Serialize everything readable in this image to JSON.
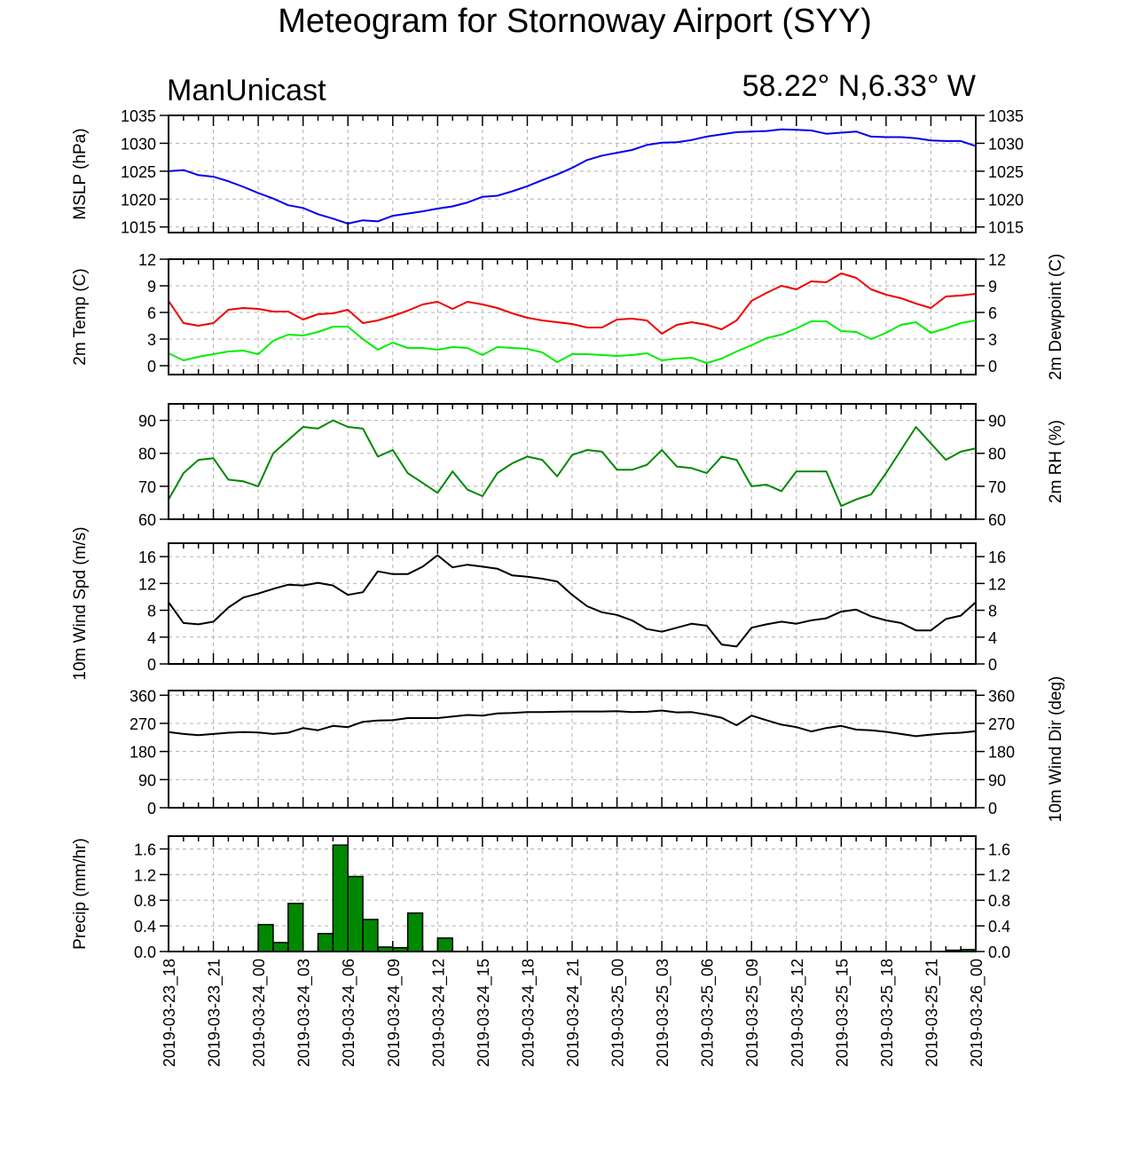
{
  "title": "Meteogram for Stornoway Airport (SYY)",
  "model": "ManUnicast",
  "location": "58.22° N,6.33° W",
  "x_tick_labels": [
    "2019-03-23_18",
    "2019-03-23_21",
    "2019-03-24_00",
    "2019-03-24_03",
    "2019-03-24_06",
    "2019-03-24_09",
    "2019-03-24_12",
    "2019-03-24_15",
    "2019-03-24_18",
    "2019-03-24_21",
    "2019-03-25_00",
    "2019-03-25_03",
    "2019-03-25_06",
    "2019-03-25_09",
    "2019-03-25_12",
    "2019-03-25_15",
    "2019-03-25_18",
    "2019-03-25_21",
    "2019-03-26_00"
  ],
  "chart_data": [
    {
      "type": "line",
      "ylabel_left": "MSLP (hPa)",
      "ylabel_right": "",
      "ylim": [
        1014,
        1035
      ],
      "yticks": [
        1015,
        1020,
        1025,
        1030,
        1035
      ],
      "grid": true,
      "x_unit": "hours from 2019-03-23_18",
      "series": [
        {
          "color": "#0000ee",
          "x": [
            0,
            1,
            2,
            3,
            4,
            5,
            6,
            7,
            8,
            9,
            10,
            11,
            12,
            13,
            14,
            15,
            16,
            17,
            18,
            19,
            20,
            21,
            22,
            23,
            24,
            25,
            26,
            27,
            28,
            29,
            30,
            31,
            32,
            33,
            34,
            35,
            36,
            37,
            38,
            39,
            40,
            41,
            42,
            43,
            44,
            45,
            46,
            47,
            48,
            49,
            50,
            51,
            52,
            53,
            54
          ],
          "y": [
            1025.0,
            1025.2,
            1024.3,
            1024.0,
            1023.2,
            1022.2,
            1021.1,
            1020.1,
            1018.9,
            1018.4,
            1017.3,
            1016.5,
            1015.6,
            1016.2,
            1016.0,
            1017.0,
            1017.4,
            1017.8,
            1018.3,
            1018.7,
            1019.4,
            1020.4,
            1020.6,
            1021.4,
            1022.3,
            1023.4,
            1024.4,
            1025.6,
            1027.0,
            1027.8,
            1028.3,
            1028.8,
            1029.7,
            1030.1,
            1030.2,
            1030.6,
            1031.2,
            1031.6,
            1032.0,
            1032.1,
            1032.2,
            1032.5,
            1032.4,
            1032.3,
            1031.7,
            1031.9,
            1032.1,
            1031.2,
            1031.1,
            1031.1,
            1030.9,
            1030.5,
            1030.4,
            1030.4,
            1029.5
          ]
        }
      ]
    },
    {
      "type": "line",
      "ylabel_left": "2m Temp (C)",
      "ylabel_right": "2m Dewpoint (C)",
      "ylim": [
        -1,
        12
      ],
      "yticks": [
        0,
        3,
        6,
        9,
        12
      ],
      "grid": true,
      "x_unit": "hours from 2019-03-23_18",
      "series": [
        {
          "color": "#ee0000",
          "x": [
            0,
            1,
            2,
            3,
            4,
            5,
            6,
            7,
            8,
            9,
            10,
            11,
            12,
            13,
            14,
            15,
            16,
            17,
            18,
            19,
            20,
            21,
            22,
            23,
            24,
            25,
            26,
            27,
            28,
            29,
            30,
            31,
            32,
            33,
            34,
            35,
            36,
            37,
            38,
            39,
            40,
            41,
            42,
            43,
            44,
            45,
            46,
            47,
            48,
            49,
            50,
            51,
            52,
            53,
            54
          ],
          "y": [
            7.3,
            4.8,
            4.5,
            4.8,
            6.3,
            6.5,
            6.4,
            6.1,
            6.1,
            5.2,
            5.8,
            5.9,
            6.3,
            4.8,
            5.1,
            5.6,
            6.2,
            6.9,
            7.2,
            6.4,
            7.2,
            6.9,
            6.5,
            5.9,
            5.4,
            5.1,
            4.9,
            4.7,
            4.3,
            4.3,
            5.2,
            5.3,
            5.1,
            3.6,
            4.6,
            4.9,
            4.6,
            4.1,
            5.1,
            7.3,
            8.2,
            9.0,
            8.6,
            9.5,
            9.4,
            10.4,
            9.9,
            8.6,
            8.0,
            7.6,
            7.0,
            6.5,
            7.8,
            7.9,
            8.1
          ]
        },
        {
          "color": "#00ee00",
          "x": [
            0,
            1,
            2,
            3,
            4,
            5,
            6,
            7,
            8,
            9,
            10,
            11,
            12,
            13,
            14,
            15,
            16,
            17,
            18,
            19,
            20,
            21,
            22,
            23,
            24,
            25,
            26,
            27,
            28,
            29,
            30,
            31,
            32,
            33,
            34,
            35,
            36,
            37,
            38,
            39,
            40,
            41,
            42,
            43,
            44,
            45,
            46,
            47,
            48,
            49,
            50,
            51,
            52,
            53,
            54
          ],
          "y": [
            1.4,
            0.6,
            1.0,
            1.3,
            1.6,
            1.7,
            1.3,
            2.8,
            3.5,
            3.4,
            3.8,
            4.4,
            4.4,
            3.0,
            1.8,
            2.6,
            2.0,
            2.0,
            1.8,
            2.1,
            2.0,
            1.2,
            2.1,
            2.0,
            1.9,
            1.5,
            0.4,
            1.3,
            1.3,
            1.2,
            1.1,
            1.2,
            1.4,
            0.6,
            0.8,
            0.9,
            0.3,
            0.8,
            1.6,
            2.3,
            3.1,
            3.5,
            4.2,
            5.0,
            5.0,
            3.9,
            3.8,
            3.0,
            3.7,
            4.6,
            4.9,
            3.7,
            4.2,
            4.8,
            5.1
          ]
        }
      ]
    },
    {
      "type": "line",
      "ylabel_left": "",
      "ylabel_right": "2m RH (%)",
      "ylim": [
        60,
        95
      ],
      "yticks": [
        60,
        70,
        80,
        90
      ],
      "grid": true,
      "x_unit": "hours from 2019-03-23_18",
      "series": [
        {
          "color": "#008800",
          "x": [
            0,
            1,
            2,
            3,
            4,
            5,
            6,
            7,
            8,
            9,
            10,
            11,
            12,
            13,
            14,
            15,
            16,
            17,
            18,
            19,
            20,
            21,
            22,
            23,
            24,
            25,
            26,
            27,
            28,
            29,
            30,
            31,
            32,
            33,
            34,
            35,
            36,
            37,
            38,
            39,
            40,
            41,
            42,
            43,
            44,
            45,
            46,
            47,
            48,
            49,
            50,
            51,
            52,
            53,
            54
          ],
          "y": [
            66,
            74,
            78,
            78.5,
            72,
            71.5,
            70,
            80,
            84,
            88,
            87.5,
            90,
            88,
            87.5,
            79,
            81,
            74,
            71,
            68,
            74.5,
            69,
            67,
            74,
            77,
            79,
            78,
            73,
            79.5,
            81,
            80.5,
            75,
            75,
            76.5,
            81,
            76,
            75.5,
            74,
            79,
            78,
            70,
            70.5,
            68.5,
            74.5,
            74.5,
            74.5,
            64,
            66,
            67.5,
            74,
            81,
            88,
            83,
            78,
            80.5,
            81.5
          ]
        }
      ]
    },
    {
      "type": "line",
      "ylabel_left": "10m Wind Spd (m/s)",
      "ylabel_right": "",
      "ylim": [
        0,
        18
      ],
      "yticks": [
        0,
        4,
        8,
        12,
        16
      ],
      "grid": true,
      "x_unit": "hours from 2019-03-23_18",
      "series": [
        {
          "color": "#000000",
          "x": [
            0,
            1,
            2,
            3,
            4,
            5,
            6,
            7,
            8,
            9,
            10,
            11,
            12,
            13,
            14,
            15,
            16,
            17,
            18,
            19,
            20,
            21,
            22,
            23,
            24,
            25,
            26,
            27,
            28,
            29,
            30,
            31,
            32,
            33,
            34,
            35,
            36,
            37,
            38,
            39,
            40,
            41,
            42,
            43,
            44,
            45,
            46,
            47,
            48,
            49,
            50,
            51,
            52,
            53,
            54
          ],
          "y": [
            9.2,
            6.1,
            5.9,
            6.3,
            8.4,
            9.9,
            10.5,
            11.2,
            11.8,
            11.7,
            12.1,
            11.7,
            10.3,
            10.7,
            13.8,
            13.4,
            13.4,
            14.5,
            16.2,
            14.4,
            14.8,
            14.5,
            14.2,
            13.2,
            13.0,
            12.7,
            12.3,
            10.3,
            8.6,
            7.7,
            7.3,
            6.5,
            5.2,
            4.8,
            5.4,
            6.0,
            5.7,
            2.9,
            2.6,
            5.4,
            5.9,
            6.3,
            6.0,
            6.5,
            6.8,
            7.8,
            8.1,
            7.1,
            6.5,
            6.1,
            5.0,
            5.0,
            6.7,
            7.2,
            9.2
          ]
        }
      ]
    },
    {
      "type": "line",
      "ylabel_left": "",
      "ylabel_right": "10m Wind Dir (deg)",
      "ylim": [
        0,
        375
      ],
      "yticks": [
        0,
        90,
        180,
        270,
        360
      ],
      "grid": true,
      "x_unit": "hours from 2019-03-23_18",
      "series": [
        {
          "color": "#000000",
          "x": [
            0,
            1,
            2,
            3,
            4,
            5,
            6,
            7,
            8,
            9,
            10,
            11,
            12,
            13,
            14,
            15,
            16,
            17,
            18,
            19,
            20,
            21,
            22,
            23,
            24,
            25,
            26,
            27,
            28,
            29,
            30,
            31,
            32,
            33,
            34,
            35,
            36,
            37,
            38,
            39,
            40,
            41,
            42,
            43,
            44,
            45,
            46,
            47,
            48,
            49,
            50,
            51,
            52,
            53,
            54
          ],
          "y": [
            242,
            236,
            232,
            236,
            240,
            242,
            241,
            236,
            240,
            255,
            248,
            262,
            258,
            275,
            279,
            280,
            287,
            287,
            287,
            292,
            297,
            295,
            302,
            303,
            306,
            306,
            307,
            308,
            308,
            308,
            309,
            306,
            307,
            311,
            305,
            306,
            298,
            288,
            264,
            295,
            280,
            266,
            258,
            244,
            255,
            262,
            250,
            248,
            243,
            236,
            229,
            234,
            238,
            240,
            245
          ]
        }
      ]
    },
    {
      "type": "bar",
      "ylabel_left": "Precip (mm/hr)",
      "ylabel_right": "",
      "ylim": [
        0,
        1.8
      ],
      "yticks": [
        0.0,
        0.4,
        0.8,
        1.2,
        1.6
      ],
      "grid": true,
      "x_unit": "hours from 2019-03-23_18",
      "series": [
        {
          "color": "#008800",
          "x": [
            6,
            7,
            8,
            10,
            11,
            12,
            13,
            14,
            15,
            16,
            18,
            52,
            53
          ],
          "y": [
            0.42,
            0.14,
            0.75,
            0.28,
            1.66,
            1.17,
            0.5,
            0.07,
            0.06,
            0.6,
            0.21,
            0.02,
            0.03
          ]
        }
      ]
    }
  ]
}
